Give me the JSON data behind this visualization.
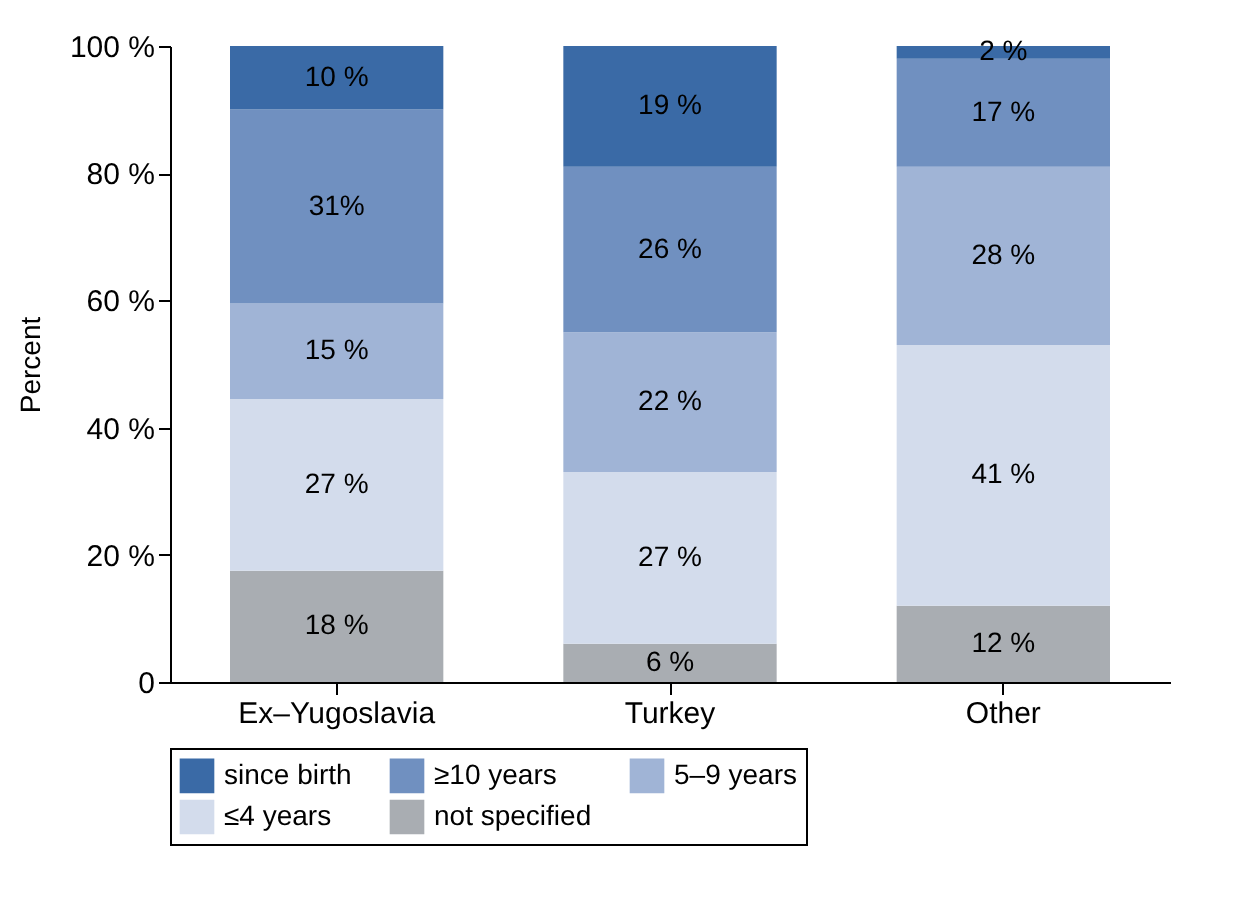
{
  "chart_data": {
    "type": "bar",
    "stacked": true,
    "ylabel": "Percent",
    "categories": [
      "Ex–Yugoslavia",
      "Turkey",
      "Other"
    ],
    "series": [
      {
        "name": "not specified",
        "color": "#a9adb2",
        "values": [
          17.5,
          6,
          12
        ],
        "value_labels": [
          "18 %",
          "6 %",
          "12 %"
        ]
      },
      {
        "name": "≤4 years",
        "color": "#d3dcec",
        "values": [
          27,
          27,
          41
        ],
        "value_labels": [
          "27 %",
          "27 %",
          "41 %"
        ]
      },
      {
        "name": "5–9 years",
        "color": "#a0b4d6",
        "values": [
          15,
          22,
          28
        ],
        "value_labels": [
          "15 %",
          "22 %",
          "28 %"
        ]
      },
      {
        "name": "≥10 years",
        "color": "#7090c0",
        "values": [
          30.5,
          26,
          17
        ],
        "value_labels": [
          "31%",
          "26 %",
          "17 %"
        ]
      },
      {
        "name": "since birth",
        "color": "#3a6aa6",
        "values": [
          10,
          19,
          2
        ],
        "value_labels": [
          "10 %",
          "19 %",
          "2 %"
        ]
      }
    ],
    "ylim": [
      0,
      100
    ],
    "yticks": [
      {
        "value": 0,
        "label": "0"
      },
      {
        "value": 20,
        "label": "20 %"
      },
      {
        "value": 40,
        "label": "40 %"
      },
      {
        "value": 60,
        "label": "60 %"
      },
      {
        "value": 80,
        "label": "80 %"
      },
      {
        "value": 100,
        "label": "100 %"
      }
    ],
    "legend": "bottom",
    "grid": false
  }
}
